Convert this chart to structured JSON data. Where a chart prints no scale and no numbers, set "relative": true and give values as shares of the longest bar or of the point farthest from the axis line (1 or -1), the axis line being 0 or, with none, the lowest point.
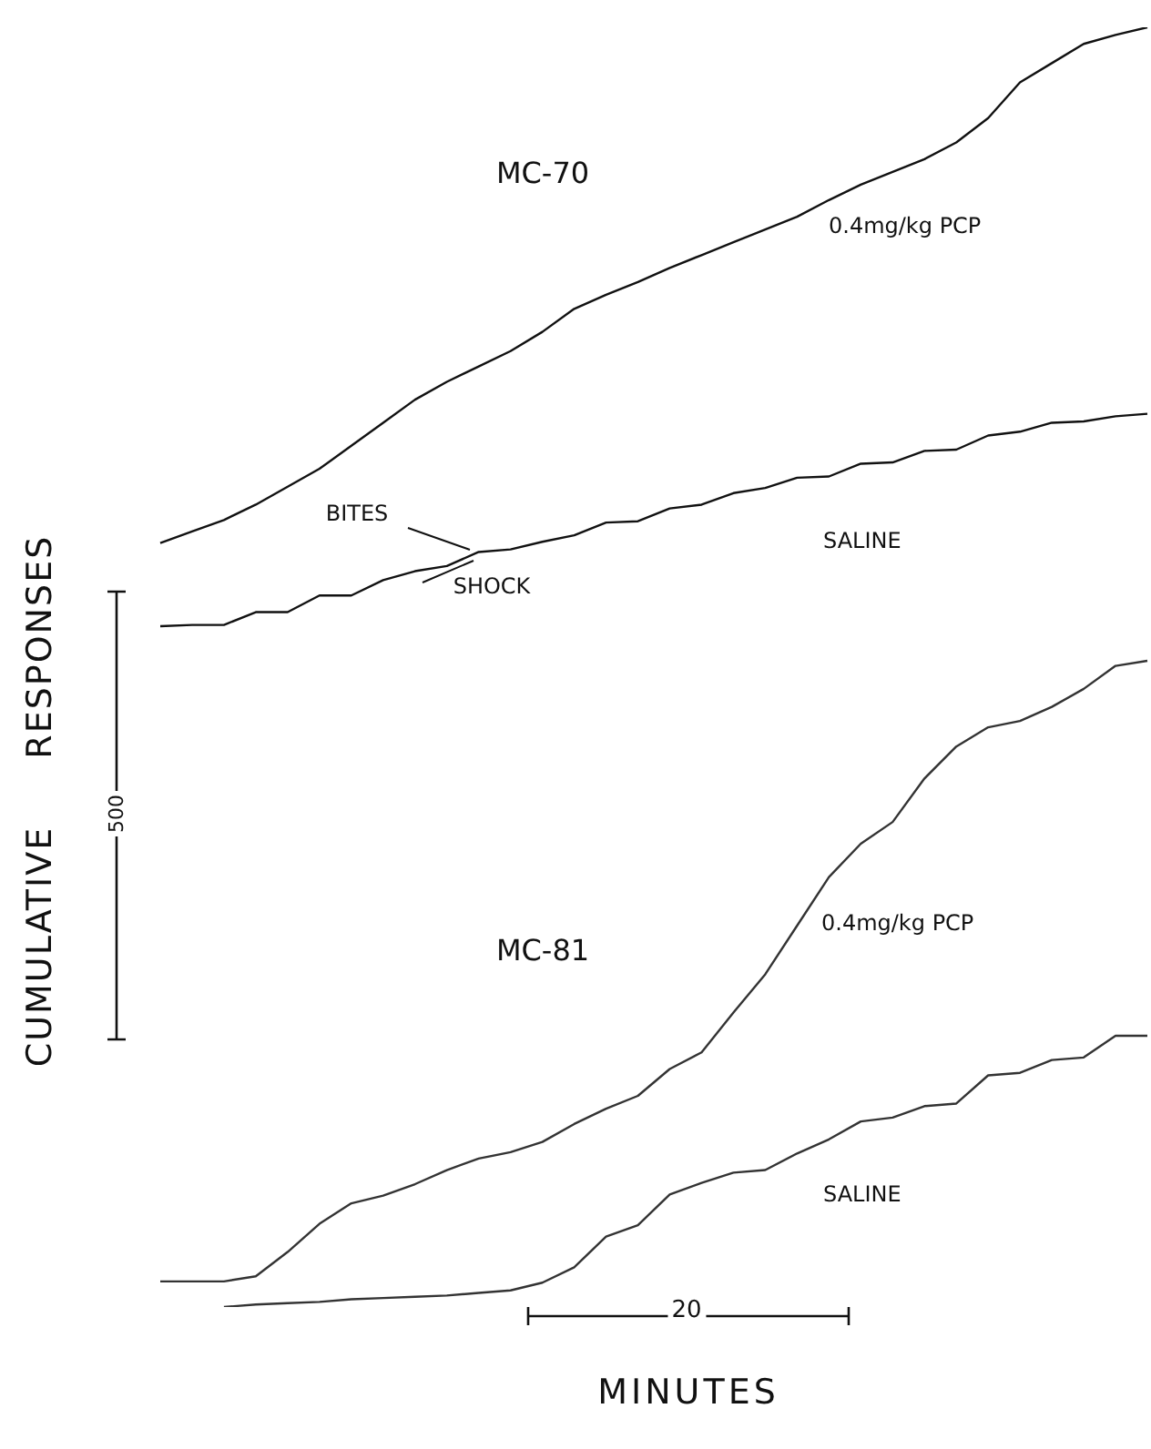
{
  "chart_data": {
    "type": "line",
    "relative": true,
    "xlabel": "MINUTES",
    "ylabel": "CUMULATIVE RESPONSES",
    "marker": "none",
    "line_style": "solid",
    "grid": false,
    "legend": false,
    "annotations": [
      "MC-70",
      "MC-81",
      "500",
      "20",
      "BITES",
      "SHOCK"
    ],
    "categories": [
      null,
      null,
      null,
      null,
      null,
      null,
      null,
      null,
      null,
      null,
      null,
      null,
      null,
      null,
      null,
      null,
      null,
      null,
      null,
      null,
      null,
      null,
      null,
      null,
      null,
      null,
      null,
      null,
      null,
      null,
      null,
      null
    ],
    "series": [
      {
        "name": "0.4mg/kg PCP",
        "color": "#111111",
        "values": [
          0.597,
          0.606,
          0.615,
          0.627,
          0.641,
          0.655,
          0.673,
          0.691,
          0.709,
          0.723,
          0.735,
          0.747,
          0.762,
          0.78,
          0.791,
          0.801,
          0.812,
          0.822,
          0.832,
          0.842,
          0.852,
          0.865,
          0.877,
          0.887,
          0.897,
          0.91,
          0.929,
          0.957,
          0.972,
          0.987,
          0.994,
          1
        ]
      },
      {
        "name": "SALINE",
        "color": "#111111",
        "values": [
          0.532,
          0.533,
          0.533,
          0.543,
          0.543,
          0.556,
          0.556,
          0.568,
          0.575,
          0.579,
          0.59,
          0.592,
          0.598,
          0.603,
          0.613,
          0.614,
          0.624,
          0.627,
          0.636,
          0.64,
          0.648,
          0.649,
          0.659,
          0.66,
          0.669,
          0.67,
          0.681,
          0.684,
          0.691,
          0.692,
          0.696,
          0.698
        ]
      },
      {
        "name": "0.4mg/kg PCP",
        "color": "#333333",
        "values": [
          0.02,
          0.02,
          0.02,
          0.024,
          0.043,
          0.065,
          0.081,
          0.087,
          0.096,
          0.107,
          0.116,
          0.121,
          0.129,
          0.143,
          0.155,
          0.165,
          0.186,
          0.199,
          0.23,
          0.26,
          0.298,
          0.336,
          0.362,
          0.379,
          0.413,
          0.438,
          0.453,
          0.458,
          0.469,
          0.483,
          0.501,
          0.505
        ]
      },
      {
        "name": "SALINE",
        "color": "#333333",
        "values": [
          null,
          null,
          0,
          0.002,
          0.003,
          0.004,
          0.006,
          0.007,
          0.008,
          0.009,
          0.011,
          0.013,
          0.019,
          0.031,
          0.055,
          0.064,
          0.088,
          0.097,
          0.105,
          0.107,
          0.12,
          0.131,
          0.145,
          0.148,
          0.157,
          0.159,
          0.181,
          0.183,
          0.193,
          0.195,
          0.212,
          0.212
        ]
      }
    ]
  }
}
